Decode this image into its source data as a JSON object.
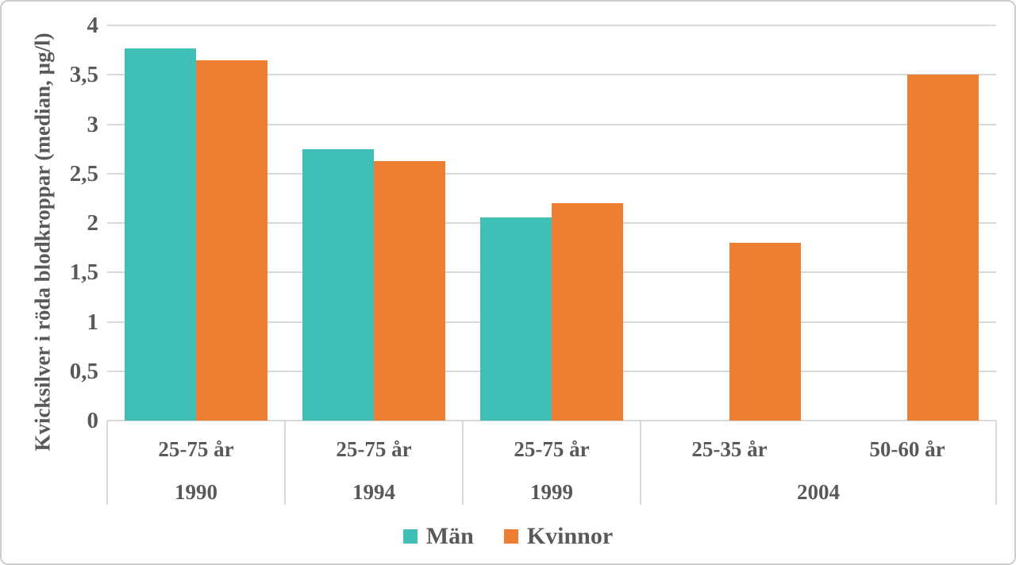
{
  "figure": {
    "background": "#ffffff",
    "border_color": "#cbcdcd"
  },
  "chart_data": {
    "type": "bar",
    "title": "",
    "ylabel": "Kvicksilver i röda blodkroppar (median, µg/l)",
    "xlabel": "",
    "ylim": [
      0,
      4
    ],
    "ytick_step": 0.5,
    "grid": true,
    "legend_position": "bottom",
    "text_color": "#595959",
    "grid_color": "#d9d9d9",
    "yticks": [
      {
        "value": 0,
        "label": "0"
      },
      {
        "value": 0.5,
        "label": "0,5"
      },
      {
        "value": 1,
        "label": "1"
      },
      {
        "value": 1.5,
        "label": "1,5"
      },
      {
        "value": 2,
        "label": "2"
      },
      {
        "value": 2.5,
        "label": "2,5"
      },
      {
        "value": 3,
        "label": "3"
      },
      {
        "value": 3.5,
        "label": "3,5"
      },
      {
        "value": 4,
        "label": "4"
      }
    ],
    "categories": [
      "25-75 år",
      "25-75 år",
      "25-75 år",
      "25-35 år",
      "50-60 år"
    ],
    "year_groups": [
      {
        "label": "1990",
        "span": 1
      },
      {
        "label": "1994",
        "span": 1
      },
      {
        "label": "1999",
        "span": 1
      },
      {
        "label": "2004",
        "span": 2
      }
    ],
    "series": [
      {
        "name": "Män",
        "color": "#3fbfb5",
        "values": [
          3.77,
          2.75,
          2.06,
          null,
          null
        ]
      },
      {
        "name": "Kvinnor",
        "color": "#ed7d31",
        "values": [
          3.65,
          2.63,
          2.2,
          1.8,
          3.5
        ]
      }
    ],
    "legend": [
      {
        "label": "Män",
        "color": "#3fbfb5"
      },
      {
        "label": "Kvinnor",
        "color": "#ed7d31"
      }
    ]
  }
}
